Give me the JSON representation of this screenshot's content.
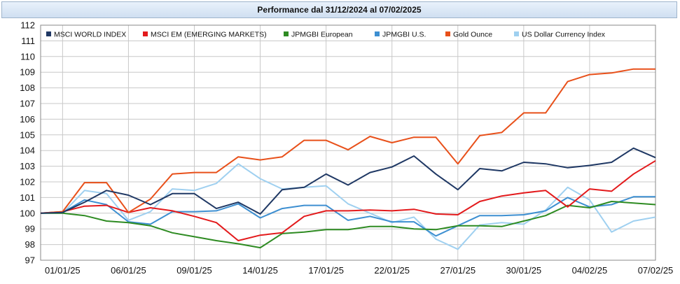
{
  "chart_data": {
    "type": "line",
    "title": "Performance dal 31/12/2024 al 07/02/2025",
    "xlabel": "",
    "ylabel": "",
    "ylim": [
      97,
      112
    ],
    "yticks": [
      97,
      98,
      99,
      100,
      101,
      102,
      103,
      104,
      105,
      106,
      107,
      108,
      109,
      110,
      111,
      112
    ],
    "x": [
      "31/12/24",
      "01/01/25",
      "02/01/25",
      "03/01/25",
      "06/01/25",
      "07/01/25",
      "08/01/25",
      "09/01/25",
      "10/01/25",
      "13/01/25",
      "14/01/25",
      "15/01/25",
      "16/01/25",
      "17/01/25",
      "20/01/25",
      "21/01/25",
      "22/01/25",
      "23/01/25",
      "24/01/25",
      "27/01/25",
      "28/01/25",
      "29/01/25",
      "30/01/25",
      "31/01/25",
      "03/02/25",
      "04/02/25",
      "05/02/25",
      "06/02/25",
      "07/02/25"
    ],
    "xtick_labels": [
      "01/01/25",
      "06/01/25",
      "09/01/25",
      "14/01/25",
      "17/01/25",
      "22/01/25",
      "27/01/25",
      "30/01/25",
      "04/02/25",
      "07/02/25"
    ],
    "xtick_positions": [
      1,
      4,
      7,
      10,
      13,
      16,
      19,
      22,
      25,
      28
    ],
    "grid": true,
    "legend_position": "top",
    "series": [
      {
        "name": "MSCI WORLD INDEX",
        "color": "#1f3864",
        "values": [
          100.0,
          100.05,
          100.7,
          101.45,
          101.15,
          100.55,
          101.25,
          101.25,
          100.3,
          100.7,
          99.95,
          101.5,
          101.65,
          102.5,
          101.8,
          102.6,
          102.95,
          103.65,
          102.5,
          101.5,
          102.85,
          102.7,
          103.25,
          103.15,
          102.9,
          103.05,
          103.25,
          104.15,
          103.55
        ]
      },
      {
        "name": "MSCI EM (EMERGING MARKETS)",
        "color": "#e31a1c",
        "values": [
          100.0,
          100.1,
          100.45,
          100.5,
          100.05,
          100.35,
          100.15,
          99.8,
          99.4,
          98.25,
          98.6,
          98.75,
          99.8,
          100.15,
          100.15,
          100.2,
          100.15,
          100.25,
          99.95,
          99.9,
          100.75,
          101.1,
          101.3,
          101.45,
          100.4,
          101.55,
          101.4,
          102.5,
          103.35
        ]
      },
      {
        "name": "JPMGBI European",
        "color": "#2e8b22",
        "values": [
          100.0,
          100.0,
          99.85,
          99.5,
          99.4,
          99.2,
          98.75,
          98.5,
          98.25,
          98.05,
          97.8,
          98.7,
          98.8,
          98.95,
          98.95,
          99.15,
          99.15,
          99.0,
          98.95,
          99.2,
          99.2,
          99.15,
          99.5,
          99.85,
          100.5,
          100.35,
          100.75,
          100.65,
          100.55
        ]
      },
      {
        "name": "JPMGBI U.S.",
        "color": "#3d8fd1",
        "values": [
          100.0,
          100.05,
          100.85,
          100.55,
          99.45,
          99.3,
          100.1,
          100.1,
          100.15,
          100.6,
          99.7,
          100.3,
          100.5,
          100.5,
          99.55,
          99.8,
          99.45,
          99.45,
          98.55,
          99.2,
          99.85,
          99.85,
          99.9,
          100.15,
          101.0,
          100.4,
          100.55,
          101.05,
          101.05
        ]
      },
      {
        "name": "Gold Ounce",
        "color": "#e8501a",
        "values": [
          100.0,
          100.1,
          101.95,
          101.95,
          100.05,
          100.9,
          102.5,
          102.6,
          102.6,
          103.6,
          103.4,
          103.6,
          104.65,
          104.65,
          104.05,
          104.9,
          104.5,
          104.85,
          104.85,
          103.15,
          104.95,
          105.15,
          106.4,
          106.4,
          108.4,
          108.85,
          108.95,
          109.2,
          109.2
        ]
      },
      {
        "name": "US Dollar Currency Index",
        "color": "#9fd0f0",
        "values": [
          100.0,
          100.0,
          101.45,
          101.25,
          99.55,
          100.1,
          101.55,
          101.45,
          101.9,
          103.15,
          102.2,
          101.55,
          101.65,
          101.75,
          100.6,
          100.0,
          99.4,
          99.75,
          98.35,
          97.7,
          99.25,
          99.4,
          99.3,
          100.2,
          101.65,
          100.85,
          98.8,
          99.5,
          99.75
        ]
      }
    ]
  }
}
